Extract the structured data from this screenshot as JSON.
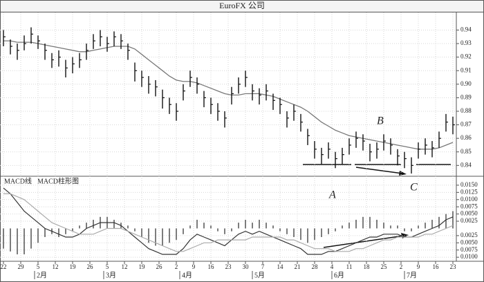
{
  "chart_data": [
    {
      "type": "ohlc",
      "title": "EuroFX 公司",
      "x": [
        0,
        2,
        4,
        6,
        8,
        10,
        12,
        14,
        16,
        18,
        20,
        22,
        24,
        26,
        28,
        30,
        32,
        34,
        36,
        38,
        40,
        42,
        44,
        46,
        48,
        50,
        52,
        54,
        56,
        58,
        60,
        62,
        64,
        66,
        68,
        70,
        72,
        74,
        76,
        78,
        80,
        82,
        84,
        86,
        88,
        90,
        92,
        94,
        96,
        98,
        100,
        102,
        104,
        106,
        108,
        110,
        112,
        114,
        116,
        118,
        120,
        122,
        124,
        126,
        128,
        130
      ],
      "high": [
        0.94,
        0.933,
        0.93,
        0.936,
        0.942,
        0.936,
        0.93,
        0.923,
        0.925,
        0.918,
        0.92,
        0.923,
        0.93,
        0.937,
        0.94,
        0.935,
        0.939,
        0.937,
        0.93,
        0.916,
        0.91,
        0.906,
        0.903,
        0.896,
        0.89,
        0.886,
        0.9,
        0.91,
        0.905,
        0.895,
        0.89,
        0.886,
        0.88,
        0.898,
        0.905,
        0.91,
        0.9,
        0.897,
        0.9,
        0.893,
        0.89,
        0.88,
        0.885,
        0.878,
        0.867,
        0.858,
        0.853,
        0.857,
        0.85,
        0.853,
        0.86,
        0.865,
        0.863,
        0.856,
        0.857,
        0.863,
        0.86,
        0.852,
        0.85,
        0.846,
        0.857,
        0.86,
        0.858,
        0.865,
        0.878,
        0.876
      ],
      "low": [
        0.928,
        0.922,
        0.918,
        0.925,
        0.93,
        0.926,
        0.918,
        0.912,
        0.913,
        0.905,
        0.908,
        0.912,
        0.918,
        0.926,
        0.928,
        0.924,
        0.928,
        0.926,
        0.918,
        0.902,
        0.898,
        0.893,
        0.891,
        0.882,
        0.878,
        0.873,
        0.888,
        0.898,
        0.893,
        0.883,
        0.878,
        0.873,
        0.868,
        0.885,
        0.893,
        0.898,
        0.888,
        0.885,
        0.888,
        0.881,
        0.878,
        0.868,
        0.873,
        0.865,
        0.855,
        0.845,
        0.841,
        0.845,
        0.838,
        0.841,
        0.848,
        0.853,
        0.851,
        0.843,
        0.845,
        0.851,
        0.848,
        0.84,
        0.838,
        0.834,
        0.845,
        0.848,
        0.846,
        0.853,
        0.865,
        0.863
      ],
      "close": [
        0.935,
        0.928,
        0.925,
        0.93,
        0.937,
        0.932,
        0.925,
        0.918,
        0.92,
        0.912,
        0.915,
        0.918,
        0.925,
        0.932,
        0.935,
        0.93,
        0.935,
        0.932,
        0.925,
        0.91,
        0.905,
        0.9,
        0.898,
        0.89,
        0.885,
        0.88,
        0.895,
        0.905,
        0.9,
        0.89,
        0.885,
        0.88,
        0.875,
        0.893,
        0.9,
        0.905,
        0.895,
        0.892,
        0.895,
        0.888,
        0.885,
        0.875,
        0.88,
        0.872,
        0.862,
        0.852,
        0.848,
        0.852,
        0.845,
        0.848,
        0.855,
        0.86,
        0.858,
        0.85,
        0.852,
        0.858,
        0.855,
        0.847,
        0.845,
        0.84,
        0.852,
        0.855,
        0.853,
        0.86,
        0.872,
        0.87
      ],
      "color": "#111111",
      "ma": {
        "color": "#777777",
        "values": [
          0.932,
          0.932,
          0.931,
          0.931,
          0.931,
          0.93,
          0.929,
          0.928,
          0.927,
          0.926,
          0.925,
          0.924,
          0.924,
          0.925,
          0.926,
          0.927,
          0.928,
          0.928,
          0.928,
          0.926,
          0.922,
          0.918,
          0.914,
          0.91,
          0.906,
          0.903,
          0.902,
          0.902,
          0.901,
          0.899,
          0.897,
          0.895,
          0.893,
          0.892,
          0.892,
          0.893,
          0.893,
          0.893,
          0.892,
          0.891,
          0.889,
          0.887,
          0.885,
          0.883,
          0.88,
          0.876,
          0.872,
          0.869,
          0.866,
          0.864,
          0.862,
          0.861,
          0.86,
          0.859,
          0.858,
          0.857,
          0.856,
          0.855,
          0.854,
          0.853,
          0.852,
          0.852,
          0.852,
          0.853,
          0.855,
          0.857
        ]
      },
      "xlim": [
        -1,
        131
      ],
      "ylim": [
        0.832,
        0.953
      ],
      "yticks": [
        0.84,
        0.85,
        0.86,
        0.87,
        0.88,
        0.89,
        {
          "value": 0.9,
          "label": "0.90"
        },
        0.91,
        0.92,
        0.93,
        0.94
      ],
      "annotations": [
        "B"
      ],
      "grid": true
    },
    {
      "type": "macd",
      "labels": [
        "MACD线",
        "MACD柱形图"
      ],
      "x": [
        0,
        2,
        4,
        6,
        8,
        10,
        12,
        14,
        16,
        18,
        20,
        22,
        24,
        26,
        28,
        30,
        32,
        34,
        36,
        38,
        40,
        42,
        44,
        46,
        48,
        50,
        52,
        54,
        56,
        58,
        60,
        62,
        64,
        66,
        68,
        70,
        72,
        74,
        76,
        78,
        80,
        82,
        84,
        86,
        88,
        90,
        92,
        94,
        96,
        98,
        100,
        102,
        104,
        106,
        108,
        110,
        112,
        114,
        116,
        118,
        120,
        122,
        124,
        126,
        128,
        130
      ],
      "histogram": {
        "color": "#444444",
        "values": [
          -0.007,
          -0.008,
          -0.009,
          -0.009,
          -0.007,
          -0.005,
          -0.003,
          -0.002,
          -0.003,
          -0.002,
          -0.001,
          0.001,
          0.002,
          0.003,
          0.004,
          0.004,
          0.003,
          0.002,
          0.001,
          -0.001,
          -0.003,
          -0.005,
          -0.006,
          -0.006,
          -0.005,
          -0.004,
          -0.002,
          0.001,
          0.003,
          0.002,
          0.001,
          -0.001,
          -0.002,
          -0.001,
          0.002,
          0.003,
          0.002,
          0.003,
          0.002,
          0.001,
          -0.001,
          -0.002,
          -0.003,
          -0.004,
          -0.005,
          -0.004,
          -0.003,
          -0.002,
          -0.001,
          0.001,
          0.002,
          0.003,
          0.004,
          0.004,
          0.003,
          0.002,
          0.001,
          0.001,
          -0.001,
          -0.001,
          0.001,
          0.002,
          0.003,
          0.004,
          0.005,
          0.006
        ]
      },
      "lines": [
        {
          "color": "#333333",
          "values": [
            0.014,
            0.012,
            0.009,
            0.006,
            0.004,
            0.002,
            0,
            -0.001,
            -0.002,
            -0.003,
            -0.003,
            -0.002,
            0,
            0.001,
            0.002,
            0.002,
            0.002,
            0.001,
            -0.001,
            -0.003,
            -0.005,
            -0.007,
            -0.008,
            -0.009,
            -0.009,
            -0.009,
            -0.007,
            -0.004,
            -0.002,
            -0.003,
            -0.004,
            -0.005,
            -0.006,
            -0.004,
            -0.002,
            -0.001,
            -0.002,
            -0.001,
            -0.002,
            -0.003,
            -0.004,
            -0.005,
            -0.006,
            -0.007,
            -0.009,
            -0.009,
            -0.009,
            -0.008,
            -0.008,
            -0.007,
            -0.006,
            -0.005,
            -0.004,
            -0.003,
            -0.003,
            -0.002,
            -0.002,
            -0.002,
            -0.003,
            -0.003,
            -0.002,
            -0.001,
            0,
            0.001,
            0.003,
            0.004
          ]
        },
        {
          "color": "#aaaaaa",
          "values": [
            0.012,
            0.012,
            0.011,
            0.01,
            0.008,
            0.006,
            0.004,
            0.002,
            0.001,
            0,
            -0.001,
            -0.002,
            -0.002,
            -0.002,
            -0.001,
            0,
            0,
            0,
            -0.001,
            -0.002,
            -0.003,
            -0.004,
            -0.005,
            -0.006,
            -0.007,
            -0.008,
            -0.008,
            -0.007,
            -0.006,
            -0.005,
            -0.005,
            -0.004,
            -0.004,
            -0.004,
            -0.004,
            -0.004,
            -0.003,
            -0.003,
            -0.003,
            -0.003,
            -0.003,
            -0.004,
            -0.004,
            -0.005,
            -0.006,
            -0.007,
            -0.007,
            -0.007,
            -0.008,
            -0.008,
            -0.008,
            -0.007,
            -0.007,
            -0.006,
            -0.005,
            -0.004,
            -0.004,
            -0.003,
            -0.003,
            -0.003,
            -0.003,
            -0.002,
            -0.002,
            -0.001,
            0,
            0.001
          ]
        }
      ],
      "xlim": [
        -1,
        131
      ],
      "ylim": [
        -0.0114,
        0.0181
      ],
      "yticks": [
        {
          "value": 0.015,
          "label": "0.0150"
        },
        {
          "value": 0.0125,
          "label": "0.0125"
        },
        {
          "value": 0.01,
          "label": "0.0100"
        },
        {
          "value": 0.0075,
          "label": "0.0075"
        },
        {
          "value": 0.005,
          "label": "0.0050"
        },
        {
          "value": 0.0025,
          "label": "0.0025"
        },
        {
          "value": -0.0025,
          "label": "0.0025"
        },
        {
          "value": -0.005,
          "label": "0.0050"
        },
        {
          "value": -0.0075,
          "label": "0.0075"
        },
        {
          "value": -0.01,
          "label": "0.0100"
        }
      ],
      "xticks": [
        {
          "value": 0,
          "label": "22"
        },
        {
          "value": 5,
          "label": "29"
        },
        {
          "value": 10,
          "label": "5"
        },
        {
          "value": 15,
          "label": "12"
        },
        {
          "value": 20,
          "label": "19"
        },
        {
          "value": 25,
          "label": "26"
        },
        {
          "value": 30,
          "label": "5"
        },
        {
          "value": 35,
          "label": "12"
        },
        {
          "value": 40,
          "label": "19"
        },
        {
          "value": 45,
          "label": "26"
        },
        {
          "value": 50,
          "label": "2"
        },
        {
          "value": 55,
          "label": "9"
        },
        {
          "value": 60,
          "label": "16"
        },
        {
          "value": 65,
          "label": "23"
        },
        {
          "value": 70,
          "label": "30"
        },
        {
          "value": 75,
          "label": "7"
        },
        {
          "value": 80,
          "label": "14"
        },
        {
          "value": 85,
          "label": "21"
        },
        {
          "value": 90,
          "label": "28"
        },
        {
          "value": 95,
          "label": "4"
        },
        {
          "value": 100,
          "label": "11"
        },
        {
          "value": 105,
          "label": "18"
        },
        {
          "value": 110,
          "label": "25"
        },
        {
          "value": 115,
          "label": "2"
        },
        {
          "value": 120,
          "label": "9"
        },
        {
          "value": 125,
          "label": "16"
        },
        {
          "value": 130,
          "label": "23"
        }
      ],
      "month_ticks": [
        {
          "value": 9,
          "label": "2月"
        },
        {
          "value": 29,
          "label": "3月"
        },
        {
          "value": 51,
          "label": "4月"
        },
        {
          "value": 72,
          "label": "5月"
        },
        {
          "value": 95,
          "label": "6月"
        },
        {
          "value": 116,
          "label": "7月"
        }
      ],
      "annotations": [
        "A",
        "C"
      ],
      "grid": true
    }
  ]
}
